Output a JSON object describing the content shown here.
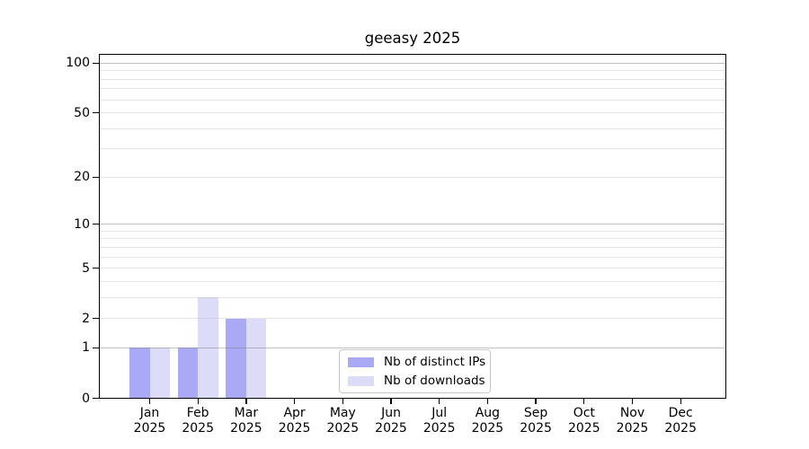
{
  "chart_data": {
    "type": "bar",
    "title": "geeasy 2025",
    "categories": [
      "Jan",
      "Feb",
      "Mar",
      "Apr",
      "May",
      "Jun",
      "Jul",
      "Aug",
      "Sep",
      "Oct",
      "Nov",
      "Dec"
    ],
    "x_tick_year": "2025",
    "series": [
      {
        "name": "Nb of distinct IPs",
        "color": "#a9a9f5",
        "values": [
          1,
          1,
          2,
          0,
          0,
          0,
          0,
          0,
          0,
          0,
          0,
          0
        ]
      },
      {
        "name": "Nb of downloads",
        "color": "#dcdcf9",
        "values": [
          1,
          3,
          2,
          0,
          0,
          0,
          0,
          0,
          0,
          0,
          0,
          0
        ]
      }
    ],
    "xlabel": "",
    "ylabel": "",
    "yscale": "log1p",
    "ylim": [
      0,
      114
    ],
    "y_tick_values": [
      100,
      50,
      20,
      10,
      5,
      2,
      1,
      0
    ],
    "gridlines": {
      "major_values": [
        1,
        10,
        100
      ],
      "minor_values": [
        2,
        3,
        4,
        5,
        6,
        7,
        8,
        9,
        20,
        30,
        40,
        50,
        60,
        70,
        80,
        90
      ],
      "major_color": "#c7c7c7",
      "minor_color": "#e9e9e9"
    },
    "legend": {
      "position": "lower center",
      "entries": [
        "Nb of distinct IPs",
        "Nb of downloads"
      ]
    }
  }
}
